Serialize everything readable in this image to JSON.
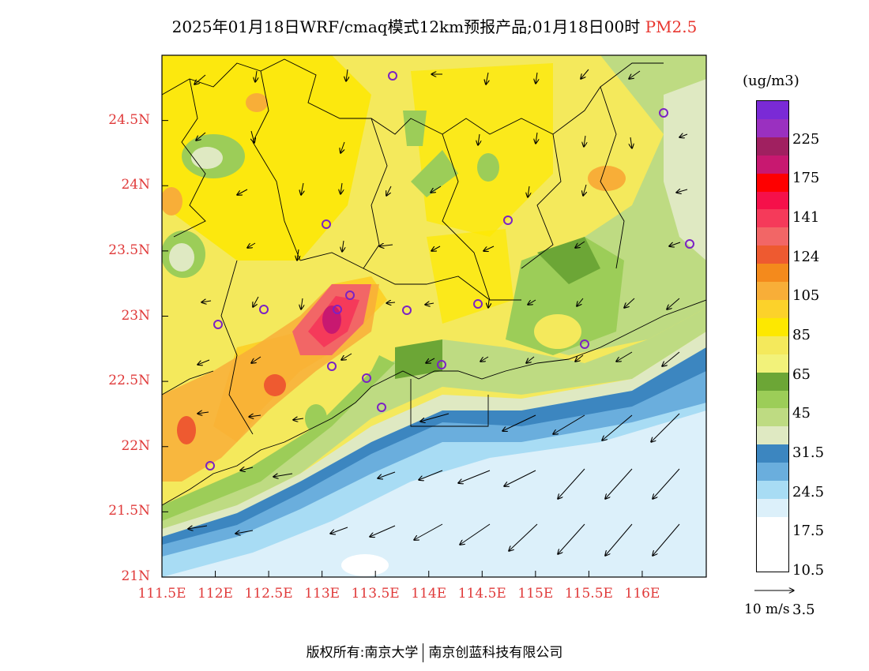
{
  "title": {
    "main": "2025年01月18日WRF/cmaq模式12km预报产品;01月18日00时",
    "variable": "PM2.5"
  },
  "map": {
    "lon_ticks": [
      "111.5E",
      "112E",
      "112.5E",
      "113E",
      "113.5E",
      "114E",
      "114.5E",
      "115E",
      "115.5E",
      "116E"
    ],
    "lon_values": [
      111.5,
      112,
      112.5,
      113,
      113.5,
      114,
      114.5,
      115,
      115.5,
      116
    ],
    "lat_ticks": [
      "21N",
      "21.5N",
      "22N",
      "22.5N",
      "23N",
      "23.5N",
      "24N",
      "24.5N"
    ],
    "lat_values": [
      21,
      21.5,
      22,
      22.5,
      23,
      23.5,
      24,
      24.5
    ],
    "lon_range": [
      111.5,
      116.6
    ],
    "lat_range": [
      21.0,
      25.0
    ]
  },
  "colorbar": {
    "units": "(ug/m3)",
    "labels": [
      "225",
      "175",
      "141",
      "124",
      "105",
      "85",
      "65",
      "45",
      "31.5",
      "24.5",
      "17.5",
      "10.5",
      "3.5"
    ],
    "colors": [
      "#ffffff",
      "#dcf0fa",
      "#a8dcf4",
      "#6aaedd",
      "#3c86c0",
      "#dfe9c2",
      "#bedb82",
      "#9ccd58",
      "#6ca636",
      "#f2f27a",
      "#f4e95c",
      "#fde800",
      "#fcd22a",
      "#f8ae38",
      "#f48a1c",
      "#ee5a30",
      "#f26666",
      "#f53a5a",
      "#f5104a",
      "#fe0000",
      "#c81870",
      "#a02060",
      "#9a30c0",
      "#7a2ad6"
    ]
  },
  "wind": {
    "label": "10 m/s"
  },
  "footer": {
    "left": "版权所有:南京大学",
    "right": "南京创蓝科技有限公司"
  }
}
